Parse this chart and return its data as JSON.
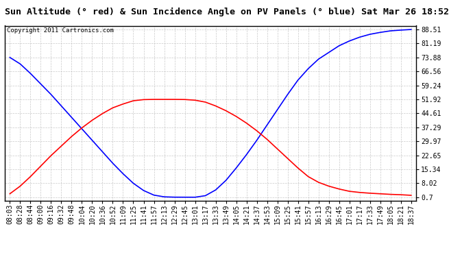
{
  "title": "Sun Altitude (° red) & Sun Incidence Angle on PV Panels (° blue) Sat Mar 26 18:52",
  "copyright": "Copyright 2011 Cartronics.com",
  "yticks": [
    0.7,
    8.02,
    15.34,
    22.65,
    29.97,
    37.29,
    44.61,
    51.92,
    59.24,
    66.56,
    73.88,
    81.19,
    88.51
  ],
  "xtick_labels": [
    "08:03",
    "08:28",
    "08:44",
    "09:00",
    "09:16",
    "09:32",
    "09:48",
    "10:04",
    "10:20",
    "10:36",
    "10:52",
    "11:09",
    "11:25",
    "11:41",
    "11:57",
    "12:13",
    "12:29",
    "12:45",
    "13:01",
    "13:17",
    "13:33",
    "13:49",
    "14:05",
    "14:21",
    "14:37",
    "14:53",
    "15:09",
    "15:25",
    "15:41",
    "15:57",
    "16:13",
    "16:29",
    "16:45",
    "17:01",
    "17:17",
    "17:33",
    "17:49",
    "18:05",
    "18:21",
    "18:37"
  ],
  "blue_y": [
    73.88,
    70.5,
    65.5,
    60.0,
    54.5,
    48.5,
    42.5,
    36.5,
    30.5,
    24.5,
    18.5,
    13.0,
    8.0,
    4.2,
    1.8,
    0.9,
    0.73,
    0.71,
    0.7,
    1.5,
    4.5,
    9.5,
    16.0,
    23.0,
    30.5,
    38.5,
    46.5,
    54.5,
    62.0,
    68.0,
    73.0,
    76.5,
    80.0,
    82.5,
    84.5,
    86.0,
    87.0,
    87.8,
    88.2,
    88.51
  ],
  "red_y": [
    2.5,
    6.5,
    11.5,
    17.0,
    22.5,
    27.5,
    32.5,
    37.0,
    41.0,
    44.5,
    47.5,
    49.5,
    51.2,
    51.8,
    51.92,
    51.92,
    51.92,
    51.85,
    51.5,
    50.5,
    48.5,
    46.0,
    43.0,
    39.5,
    35.5,
    31.0,
    26.0,
    21.0,
    16.0,
    11.5,
    8.5,
    6.5,
    5.0,
    3.8,
    3.2,
    2.8,
    2.5,
    2.2,
    2.0,
    1.7
  ],
  "bg_color": "#ffffff",
  "plot_bg_color": "#ffffff",
  "grid_color": "#bbbbbb",
  "blue_color": "#0000ff",
  "red_color": "#ff0000",
  "title_fontsize": 9.5,
  "tick_fontsize": 7,
  "copyright_fontsize": 6.5,
  "ymin": -1.0,
  "ymax": 90.5
}
